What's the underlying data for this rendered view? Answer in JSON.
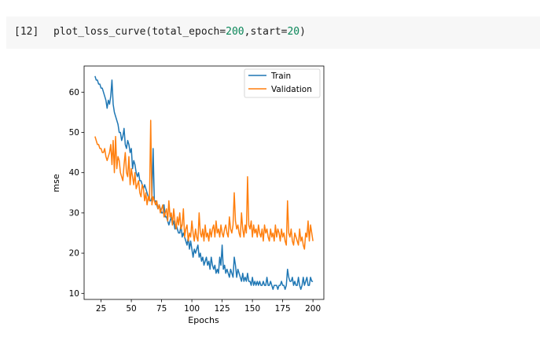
{
  "cell": {
    "prompt": "[12]",
    "code_fn": "plot_loss_curve(total_epoch=",
    "code_arg1": "200",
    "code_mid": ",start=",
    "code_arg2": "20",
    "code_end": ")"
  },
  "colors": {
    "train": "#1f77b4",
    "validation": "#ff7f0e",
    "cell_bg": "#f7f7f7",
    "number": "#098658"
  },
  "chart_data": {
    "type": "line",
    "title": "",
    "xlabel": "Epochs",
    "ylabel": "mse",
    "xlim": [
      11,
      209
    ],
    "ylim": [
      8.5,
      66.5
    ],
    "xticks": [
      25,
      50,
      75,
      100,
      125,
      150,
      175,
      200
    ],
    "yticks": [
      10,
      20,
      30,
      40,
      50,
      60
    ],
    "legend": "top-right",
    "grid": false,
    "series": [
      {
        "name": "Train",
        "color": "#1f77b4",
        "x": [
          20,
          21,
          22,
          23,
          24,
          25,
          26,
          27,
          28,
          29,
          30,
          31,
          32,
          33,
          34,
          35,
          36,
          37,
          38,
          39,
          40,
          41,
          42,
          43,
          44,
          45,
          46,
          47,
          48,
          49,
          50,
          51,
          52,
          53,
          54,
          55,
          56,
          57,
          58,
          59,
          60,
          61,
          62,
          63,
          64,
          65,
          66,
          67,
          68,
          69,
          70,
          71,
          72,
          73,
          74,
          75,
          76,
          77,
          78,
          79,
          80,
          81,
          82,
          83,
          84,
          85,
          86,
          87,
          88,
          89,
          90,
          91,
          92,
          93,
          94,
          95,
          96,
          97,
          98,
          99,
          100,
          101,
          102,
          103,
          104,
          105,
          106,
          107,
          108,
          109,
          110,
          111,
          112,
          113,
          114,
          115,
          116,
          117,
          118,
          119,
          120,
          121,
          122,
          123,
          124,
          125,
          126,
          127,
          128,
          129,
          130,
          131,
          132,
          133,
          134,
          135,
          136,
          137,
          138,
          139,
          140,
          141,
          142,
          143,
          144,
          145,
          146,
          147,
          148,
          149,
          150,
          151,
          152,
          153,
          154,
          155,
          156,
          157,
          158,
          159,
          160,
          161,
          162,
          163,
          164,
          165,
          166,
          167,
          168,
          169,
          170,
          171,
          172,
          173,
          174,
          175,
          176,
          177,
          178,
          179,
          180,
          181,
          182,
          183,
          184,
          185,
          186,
          187,
          188,
          189,
          190,
          191,
          192,
          193,
          194,
          195,
          196,
          197,
          198,
          199,
          200
        ],
        "y": [
          64,
          63,
          63,
          62,
          62,
          61,
          61,
          60,
          59,
          58,
          56,
          58,
          57,
          59,
          63,
          57,
          55,
          54,
          53,
          52,
          50,
          50,
          48,
          49,
          51,
          47,
          46,
          48,
          47,
          45,
          46,
          41,
          43,
          42,
          40,
          39,
          40,
          38,
          38,
          37,
          36,
          37,
          36,
          35,
          34,
          33,
          33,
          34,
          46,
          33,
          33,
          32,
          31,
          32,
          31,
          30,
          30,
          32,
          29,
          29,
          28,
          27,
          28,
          29,
          27,
          28,
          26,
          27,
          26,
          25,
          25,
          27,
          24,
          25,
          24,
          23,
          22,
          24,
          21,
          23,
          21,
          19,
          21,
          20,
          21,
          22,
          19,
          20,
          18,
          19,
          17,
          18,
          19,
          17,
          18,
          16,
          19,
          17,
          16,
          17,
          15,
          16,
          15,
          19,
          17,
          22,
          16,
          17,
          15,
          16,
          15,
          14,
          16,
          15,
          14,
          19,
          17,
          14,
          16,
          15,
          14,
          13,
          15,
          13,
          14,
          13,
          15,
          13,
          13,
          12,
          14,
          12,
          13,
          12,
          13,
          12,
          13,
          12,
          12,
          13,
          12,
          12,
          14,
          12,
          12,
          13,
          12,
          11,
          12,
          12,
          12,
          11,
          12,
          12,
          13,
          12,
          12,
          11,
          12,
          16,
          14,
          13,
          13,
          14,
          12,
          13,
          12,
          12,
          14,
          12,
          11,
          12,
          14,
          12,
          13,
          14,
          12,
          12,
          14,
          13,
          13
        ]
      },
      {
        "name": "Validation",
        "color": "#ff7f0e",
        "x": [
          20,
          21,
          22,
          23,
          24,
          25,
          26,
          27,
          28,
          29,
          30,
          31,
          32,
          33,
          34,
          35,
          36,
          37,
          38,
          39,
          40,
          41,
          42,
          43,
          44,
          45,
          46,
          47,
          48,
          49,
          50,
          51,
          52,
          53,
          54,
          55,
          56,
          57,
          58,
          59,
          60,
          61,
          62,
          63,
          64,
          65,
          66,
          67,
          68,
          69,
          70,
          71,
          72,
          73,
          74,
          75,
          76,
          77,
          78,
          79,
          80,
          81,
          82,
          83,
          84,
          85,
          86,
          87,
          88,
          89,
          90,
          91,
          92,
          93,
          94,
          95,
          96,
          97,
          98,
          99,
          100,
          101,
          102,
          103,
          104,
          105,
          106,
          107,
          108,
          109,
          110,
          111,
          112,
          113,
          114,
          115,
          116,
          117,
          118,
          119,
          120,
          121,
          122,
          123,
          124,
          125,
          126,
          127,
          128,
          129,
          130,
          131,
          132,
          133,
          134,
          135,
          136,
          137,
          138,
          139,
          140,
          141,
          142,
          143,
          144,
          145,
          146,
          147,
          148,
          149,
          150,
          151,
          152,
          153,
          154,
          155,
          156,
          157,
          158,
          159,
          160,
          161,
          162,
          163,
          164,
          165,
          166,
          167,
          168,
          169,
          170,
          171,
          172,
          173,
          174,
          175,
          176,
          177,
          178,
          179,
          180,
          181,
          182,
          183,
          184,
          185,
          186,
          187,
          188,
          189,
          190,
          191,
          192,
          193,
          194,
          195,
          196,
          197,
          198,
          199,
          200
        ],
        "y": [
          49,
          48,
          47,
          47,
          46,
          46,
          45,
          45,
          46,
          44,
          43,
          44,
          45,
          47,
          42,
          48,
          40,
          49,
          41,
          44,
          43,
          40,
          39,
          38,
          42,
          45,
          40,
          39,
          44,
          37,
          41,
          39,
          37,
          40,
          36,
          37,
          38,
          35,
          34,
          37,
          36,
          33,
          35,
          32,
          34,
          33,
          53,
          32,
          34,
          33,
          32,
          33,
          31,
          32,
          30,
          31,
          32,
          29,
          30,
          31,
          28,
          33,
          29,
          30,
          27,
          31,
          28,
          26,
          29,
          27,
          30,
          26,
          27,
          31,
          24,
          26,
          27,
          23,
          25,
          24,
          28,
          25,
          23,
          26,
          24,
          23,
          30,
          25,
          24,
          26,
          23,
          27,
          24,
          25,
          23,
          26,
          24,
          26,
          27,
          24,
          28,
          25,
          26,
          24,
          27,
          25,
          24,
          26,
          27,
          25,
          24,
          29,
          26,
          25,
          27,
          35,
          28,
          26,
          27,
          25,
          24,
          30,
          26,
          24,
          27,
          25,
          39,
          27,
          26,
          28,
          24,
          27,
          25,
          26,
          24,
          27,
          25,
          24,
          26,
          23,
          27,
          25,
          26,
          24,
          23,
          26,
          24,
          25,
          23,
          27,
          24,
          26,
          25,
          23,
          26,
          24,
          25,
          23,
          22,
          33,
          25,
          24,
          26,
          23,
          22,
          25,
          24,
          23,
          22,
          26,
          23,
          24,
          22,
          21,
          25,
          24,
          28,
          23,
          27,
          25,
          23
        ]
      }
    ]
  }
}
